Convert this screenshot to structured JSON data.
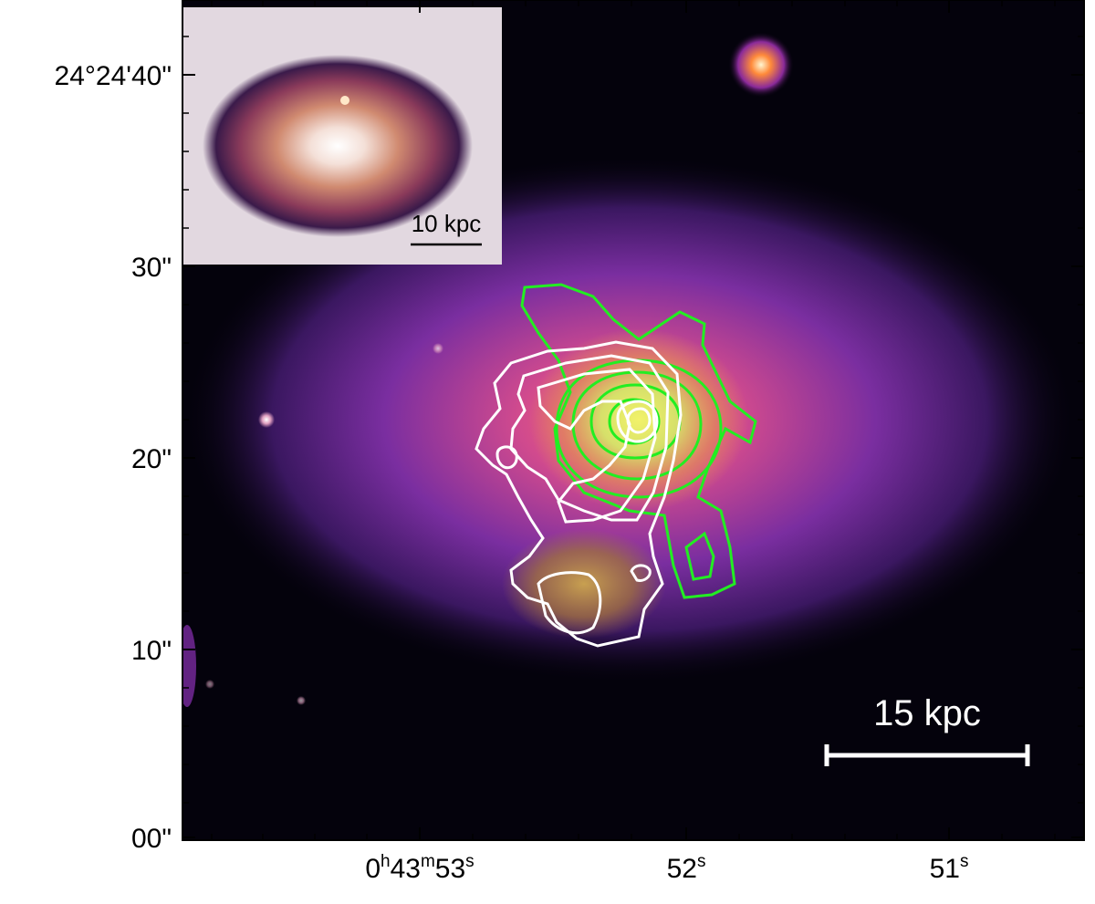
{
  "axes": {
    "dec_ticks": [
      "24°24'40\"",
      "30\"",
      "20\"",
      "10\"",
      "00\""
    ],
    "ra_ticks": [
      {
        "h": "0",
        "m": "43",
        "s": "53"
      },
      {
        "s": "52"
      },
      {
        "s": "51"
      }
    ],
    "ra_units": {
      "h": "h",
      "m": "m",
      "s": "s"
    }
  },
  "scale_bar_main": "15 kpc",
  "scale_bar_inset": "10 kpc",
  "colors": {
    "background": "#04020c",
    "contour_green": "#22ee22",
    "contour_white": "#ffffff",
    "inset_background": "#e2d8e0"
  }
}
